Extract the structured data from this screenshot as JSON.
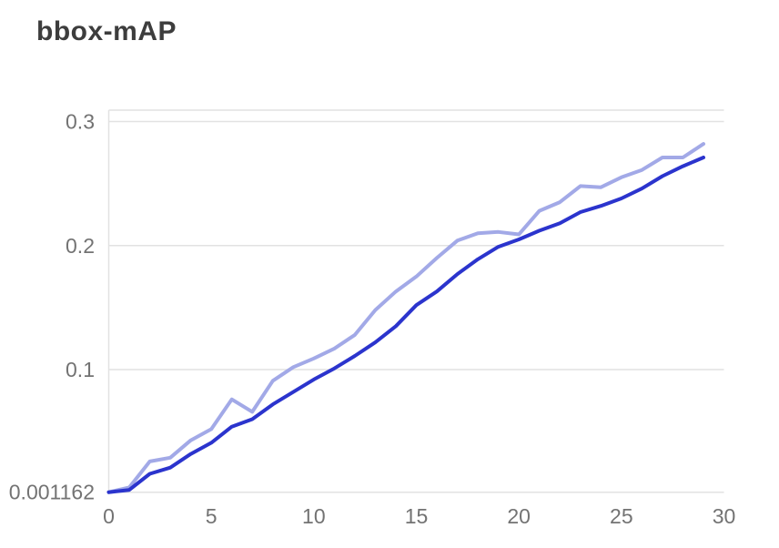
{
  "header": {
    "title": "bbox-mAP"
  },
  "chart_data": {
    "type": "line",
    "title": "bbox-mAP",
    "xlabel": "",
    "ylabel": "",
    "xlim": [
      0,
      30
    ],
    "ylim": [
      0.001162,
      0.3092
    ],
    "grid": true,
    "legend": "none",
    "x": [
      0,
      1,
      2,
      3,
      4,
      5,
      6,
      7,
      8,
      9,
      10,
      11,
      12,
      13,
      14,
      15,
      16,
      17,
      18,
      19,
      20,
      21,
      22,
      23,
      24,
      25,
      26,
      27,
      28,
      29
    ],
    "series": [
      {
        "name": "light-lavender-line",
        "color": "#a2a9e7",
        "values": [
          0.001162,
          0.005,
          0.026,
          0.029,
          0.043,
          0.052,
          0.076,
          0.066,
          0.091,
          0.102,
          0.109,
          0.117,
          0.128,
          0.148,
          0.163,
          0.175,
          0.19,
          0.204,
          0.21,
          0.211,
          0.209,
          0.228,
          0.235,
          0.248,
          0.247,
          0.255,
          0.261,
          0.271,
          0.271,
          0.282
        ]
      },
      {
        "name": "dark-blue-line",
        "color": "#2b34cd",
        "values": [
          0.001162,
          0.003,
          0.016,
          0.021,
          0.032,
          0.041,
          0.054,
          0.06,
          0.072,
          0.082,
          0.092,
          0.101,
          0.111,
          0.122,
          0.135,
          0.152,
          0.163,
          0.177,
          0.189,
          0.199,
          0.205,
          0.212,
          0.218,
          0.227,
          0.232,
          0.238,
          0.246,
          0.256,
          0.264,
          0.271
        ]
      }
    ],
    "x_ticks": {
      "values": [
        0,
        5,
        10,
        15,
        20,
        25,
        30
      ],
      "labels": [
        "0",
        "5",
        "10",
        "15",
        "20",
        "25",
        "30"
      ]
    },
    "y_ticks": {
      "values": [
        0.3,
        0.2,
        0.1,
        0.001162
      ],
      "labels": [
        "0.3",
        "0.2",
        "0.1",
        "0.001162"
      ]
    },
    "colors": {
      "grid": "#e2e2e2",
      "axis": "#e2e2e2",
      "tick_text": "#737373",
      "title_text": "#3d3d3d"
    }
  }
}
